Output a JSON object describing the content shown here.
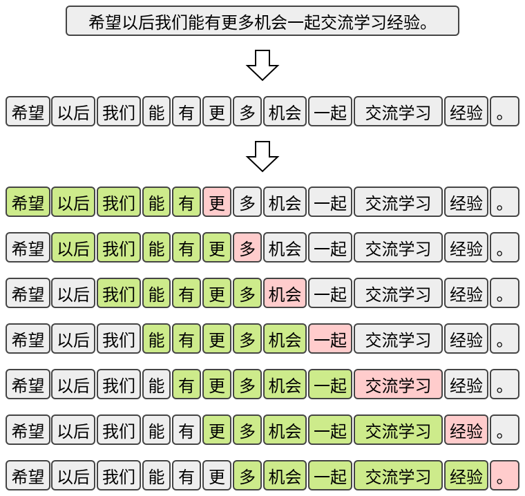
{
  "sentence": "希望以后我们能有更多机会一起交流学习经验。",
  "tokens": [
    "希望",
    "以后",
    "我们",
    "能",
    "有",
    "更",
    "多",
    "机会",
    "一起",
    "交流学习",
    "经验",
    "。"
  ],
  "colors": {
    "default": "#eeeeee",
    "context": "#cdeb8b",
    "target": "#ffcccc",
    "border": "#444444"
  },
  "icons": {
    "arrow": "down-arrow-icon"
  },
  "windows": [
    {
      "context": [
        0,
        1,
        2,
        3,
        4
      ],
      "target": 5
    },
    {
      "context": [
        1,
        2,
        3,
        4,
        5
      ],
      "target": 6
    },
    {
      "context": [
        2,
        3,
        4,
        5,
        6
      ],
      "target": 7
    },
    {
      "context": [
        3,
        4,
        5,
        6,
        7
      ],
      "target": 8
    },
    {
      "context": [
        4,
        5,
        6,
        7,
        8
      ],
      "target": 9
    },
    {
      "context": [
        5,
        6,
        7,
        8,
        9
      ],
      "target": 10
    },
    {
      "context": [
        6,
        7,
        8,
        9,
        10
      ],
      "target": 11
    }
  ]
}
